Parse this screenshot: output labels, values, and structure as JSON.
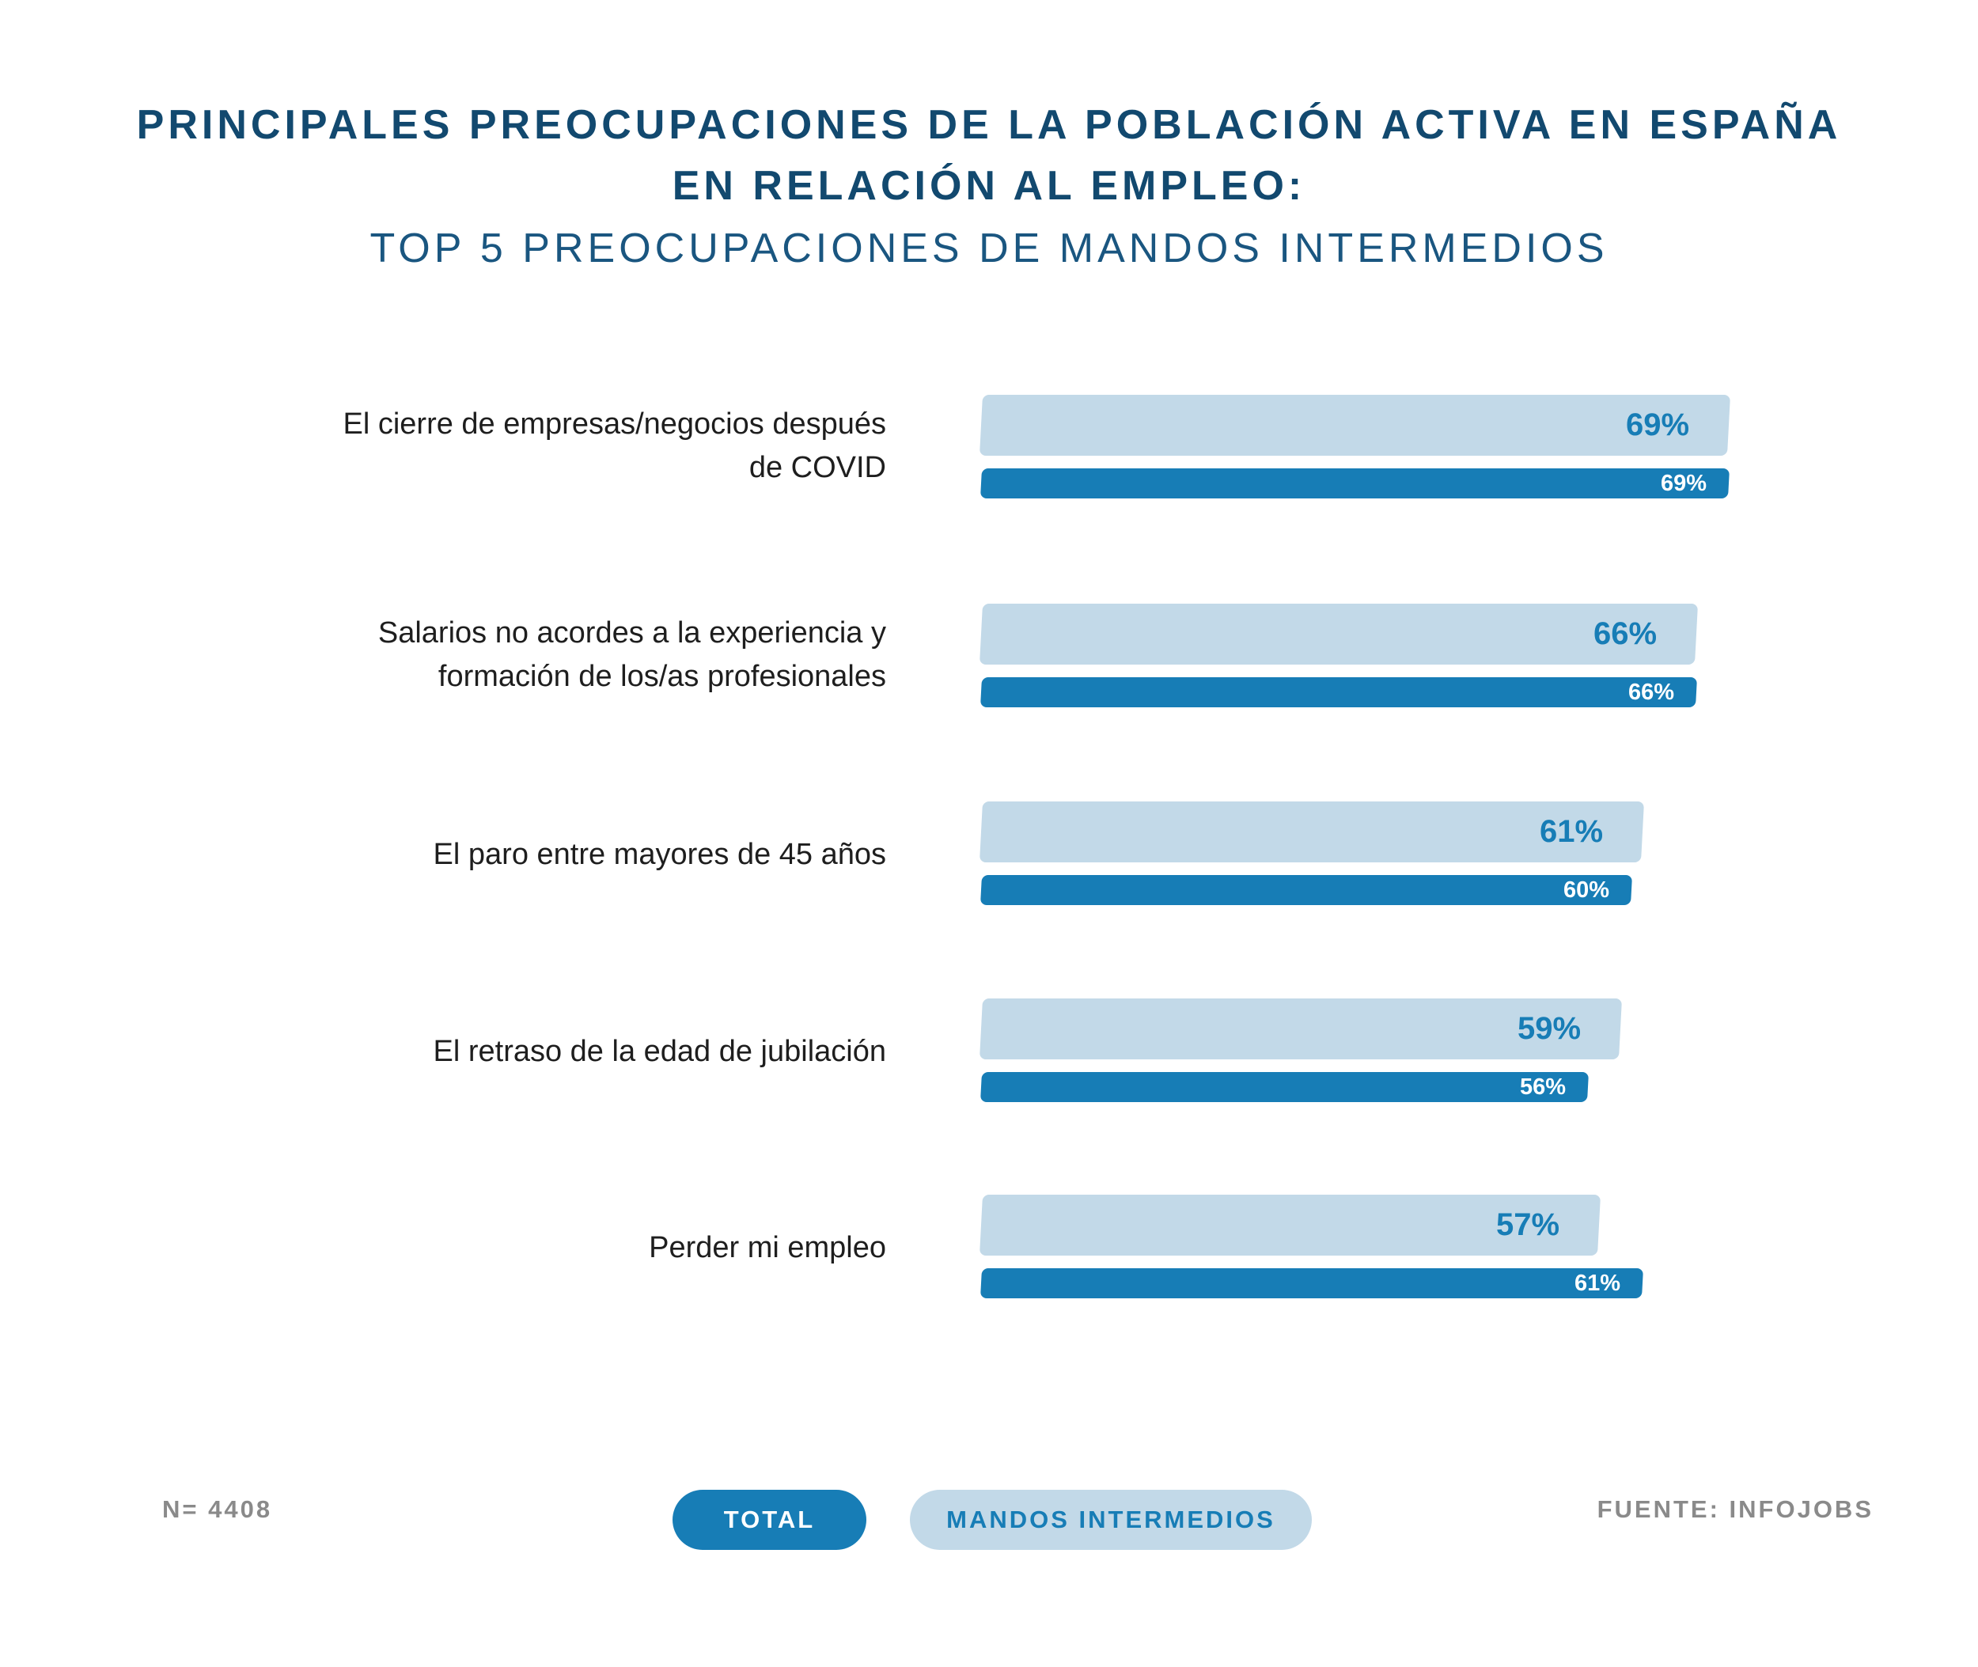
{
  "chart_data": {
    "type": "bar",
    "orientation": "horizontal",
    "title": "PRINCIPALES PREOCUPACIONES DE LA POBLACIÓN ACTIVA EN ESPAÑA",
    "title_line2": "EN RELACIÓN AL EMPLEO:",
    "subtitle": "TOP 5 PREOCUPACIONES DE MANDOS INTERMEDIOS",
    "categories": [
      [
        "El cierre de empresas/negocios después",
        "de COVID"
      ],
      [
        "Salarios no acordes a la experiencia y",
        "formación de los/as profesionales"
      ],
      [
        "El paro entre mayores de 45 años"
      ],
      [
        "El retraso de la edad de jubilación"
      ],
      [
        "Perder mi empleo"
      ]
    ],
    "series": [
      {
        "name": "MANDOS INTERMEDIOS",
        "color": "#c2d9e8",
        "values": [
          69,
          66,
          61,
          59,
          57
        ],
        "labels": [
          "69%",
          "66%",
          "61%",
          "59%",
          "57%"
        ]
      },
      {
        "name": "TOTAL",
        "color": "#177db6",
        "values": [
          69,
          66,
          60,
          56,
          61
        ],
        "labels": [
          "69%",
          "66%",
          "60%",
          "56%",
          "61%"
        ]
      }
    ],
    "unit": "%",
    "legend_position": "bottom-center"
  },
  "footer": {
    "sample": "N= 4408",
    "source": "FUENTE: INFOJOBS"
  }
}
